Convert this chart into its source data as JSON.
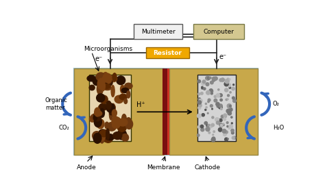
{
  "bg_color": "#ffffff",
  "chamber_color": "#c8a84a",
  "membrane_dark": "#7a1010",
  "membrane_red": "#cc3322",
  "anode_bg": "#e8d5b0",
  "cathode_bg": "#d4d4d4",
  "multimeter_color": "#f0f0f0",
  "computer_color": "#d4c890",
  "resistor_color": "#f0a800",
  "wire_color": "#222222",
  "blue_arrow_color": "#3366bb",
  "outer_border_color": "#99bbcc",
  "outer_fill": "#e8f4f8",
  "label_anode": "Anode",
  "label_cathode": "Cathode",
  "label_membrane": "Membrane",
  "label_microorg": "Microorganisms",
  "label_multimeter": "Multimeter",
  "label_computer": "Computer",
  "label_resistor": "Resistor",
  "label_organic": "Organic\nmatter",
  "label_co2": "CO₂",
  "label_o2": "O₂",
  "label_h2o": "H₂O",
  "label_hplus": "H⁺",
  "label_eminus": "e⁻"
}
